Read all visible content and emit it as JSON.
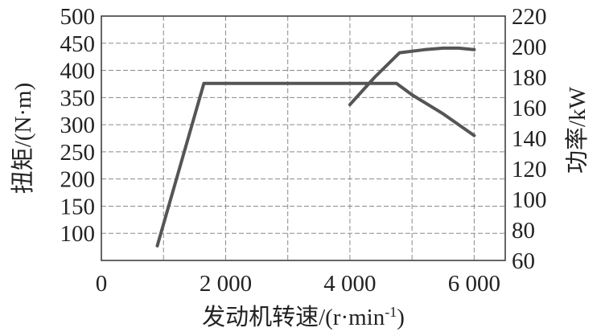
{
  "chart_data": {
    "type": "line",
    "xlabel": "发动机转速/(r·min",
    "xlabel_sup": "-1",
    "xlabel_suffix": ")",
    "ylabel_left": "扭矩/(N·m)",
    "ylabel_right": "功率/kW",
    "xlim": [
      0,
      6500
    ],
    "ylim_left": [
      50,
      500
    ],
    "ylim_right": [
      60,
      220
    ],
    "x_ticks": [
      0,
      2000,
      4000,
      6000
    ],
    "x_tick_labels": [
      "0",
      "2 000",
      "4 000",
      "6 000"
    ],
    "y_left_ticks": [
      100,
      150,
      200,
      250,
      300,
      350,
      400,
      450,
      500
    ],
    "y_left_tick_labels": [
      "100",
      "150",
      "200",
      "250",
      "300",
      "350",
      "400",
      "450",
      "500"
    ],
    "y_right_ticks": [
      60,
      80,
      100,
      120,
      140,
      160,
      180,
      200,
      220
    ],
    "y_right_tick_labels": [
      "60",
      "80",
      "100",
      "120",
      "140",
      "160",
      "180",
      "200",
      "220"
    ],
    "grid": true,
    "series": [
      {
        "axis": "left",
        "color": "#555555",
        "x": [
          900,
          1650,
          4750,
          5000,
          5500,
          6000
        ],
        "y": [
          77,
          376,
          376,
          355,
          320,
          280
        ]
      },
      {
        "axis": "right",
        "color": "#555555",
        "x": [
          4000,
          4400,
          4800,
          5200,
          5500,
          5750,
          6000
        ],
        "y": [
          162,
          180,
          196,
          198,
          199,
          199,
          198
        ]
      }
    ]
  }
}
